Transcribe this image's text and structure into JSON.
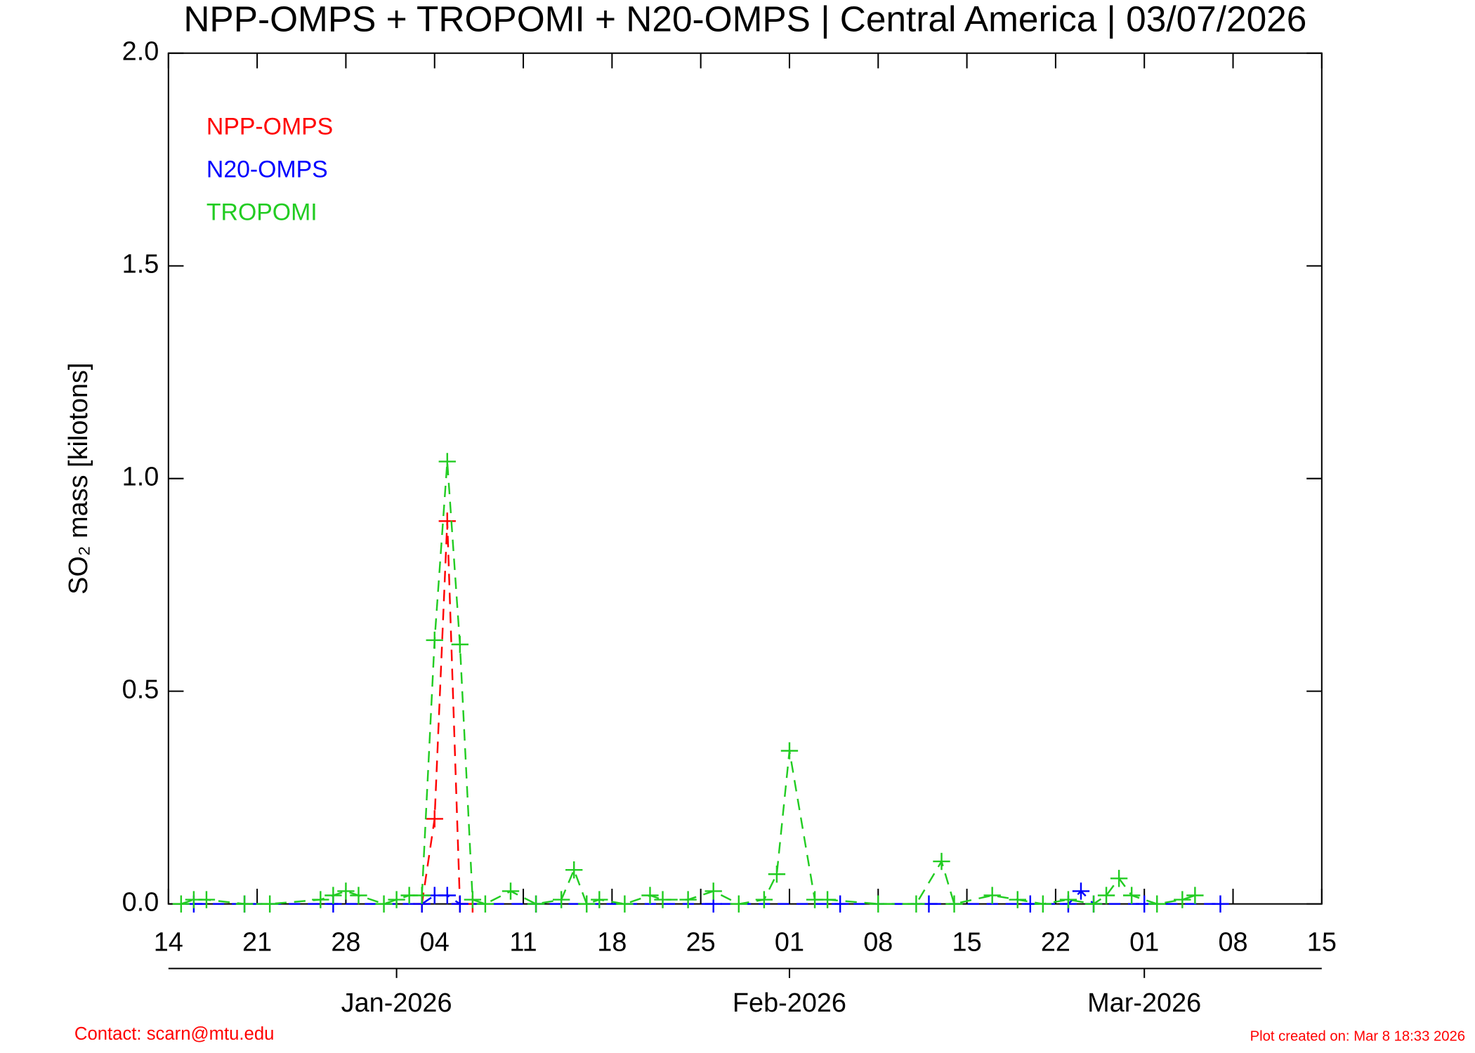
{
  "chart_data": {
    "type": "line",
    "title": "NPP-OMPS + TROPOMI + N20-OMPS | Central America | 03/07/2026",
    "ylabel": "SO₂ mass [kilotons]",
    "xlim": [
      "2025-12-14",
      "2026-03-15"
    ],
    "xticks": [
      {
        "value": "2025-12-14",
        "label": "14"
      },
      {
        "value": "2025-12-21",
        "label": "21"
      },
      {
        "value": "2025-12-28",
        "label": "28"
      },
      {
        "value": "2026-01-04",
        "label": "04"
      },
      {
        "value": "2026-01-11",
        "label": "11"
      },
      {
        "value": "2026-01-18",
        "label": "18"
      },
      {
        "value": "2026-01-25",
        "label": "25"
      },
      {
        "value": "2026-02-01",
        "label": "01"
      },
      {
        "value": "2026-02-08",
        "label": "08"
      },
      {
        "value": "2026-02-15",
        "label": "15"
      },
      {
        "value": "2026-02-22",
        "label": "22"
      },
      {
        "value": "2026-03-01",
        "label": "01"
      },
      {
        "value": "2026-03-08",
        "label": "08"
      },
      {
        "value": "2026-03-15",
        "label": "15"
      }
    ],
    "month_ticks": [
      {
        "value": "2026-01-01",
        "label": "Jan-2026"
      },
      {
        "value": "2026-02-01",
        "label": "Feb-2026"
      },
      {
        "value": "2026-03-01",
        "label": "Mar-2026"
      }
    ],
    "ylim": [
      0,
      2.0
    ],
    "yticks": [
      {
        "value": 0,
        "label": "0.0"
      },
      {
        "value": 0.5,
        "label": "0.5"
      },
      {
        "value": 1.0,
        "label": "1.0"
      },
      {
        "value": 1.5,
        "label": "1.5"
      },
      {
        "value": 2.0,
        "label": "2.0"
      }
    ],
    "series": [
      {
        "name": "NPP-OMPS",
        "color": "#ff0000",
        "x": [
          "2026-01-03",
          "2026-01-04",
          "2026-01-05",
          "2026-01-06",
          "2026-01-07"
        ],
        "values": [
          0.0,
          0.2,
          0.9,
          0.0,
          0.0
        ]
      },
      {
        "name": "N20-OMPS",
        "color": "#0000ff",
        "x": [
          "2025-12-16",
          "2025-12-20",
          "2025-12-27",
          "2026-01-03",
          "2026-01-04",
          "2026-01-05",
          "2026-01-06",
          "2026-01-12",
          "2026-01-26",
          "2026-02-05",
          "2026-02-12",
          "2026-02-20",
          "2026-02-23",
          "2026-02-24",
          "2026-02-25",
          "2026-03-01",
          "2026-03-07"
        ],
        "values": [
          0,
          0,
          0,
          0,
          0.02,
          0.02,
          0,
          0,
          0,
          0,
          0,
          0,
          0,
          0.03,
          0,
          0,
          0
        ]
      },
      {
        "name": "TROPOMI",
        "color": "#22cc22",
        "x": [
          "2025-12-15",
          "2025-12-16",
          "2025-12-17",
          "2025-12-20",
          "2025-12-22",
          "2025-12-26",
          "2025-12-27",
          "2025-12-28",
          "2025-12-29",
          "2025-12-31",
          "2026-01-01",
          "2026-01-02",
          "2026-01-03",
          "2026-01-04",
          "2026-01-05",
          "2026-01-06",
          "2026-01-07",
          "2026-01-08",
          "2026-01-10",
          "2026-01-12",
          "2026-01-14",
          "2026-01-15",
          "2026-01-16",
          "2026-01-17",
          "2026-01-19",
          "2026-01-21",
          "2026-01-22",
          "2026-01-24",
          "2026-01-26",
          "2026-01-28",
          "2026-01-30",
          "2026-01-31",
          "2026-02-01",
          "2026-02-03",
          "2026-02-04",
          "2026-02-08",
          "2026-02-11",
          "2026-02-13",
          "2026-02-14",
          "2026-02-17",
          "2026-02-19",
          "2026-02-21",
          "2026-02-23",
          "2026-02-25",
          "2026-02-26",
          "2026-02-27",
          "2026-02-28",
          "2026-03-02",
          "2026-03-04",
          "2026-03-05"
        ],
        "values": [
          0.0,
          0.01,
          0.01,
          0.0,
          0.0,
          0.01,
          0.02,
          0.03,
          0.02,
          0.0,
          0.01,
          0.02,
          0.02,
          0.62,
          1.04,
          0.61,
          0.01,
          0.0,
          0.03,
          0.0,
          0.01,
          0.08,
          0.0,
          0.01,
          0.0,
          0.02,
          0.01,
          0.01,
          0.03,
          0.0,
          0.01,
          0.07,
          0.36,
          0.01,
          0.01,
          0.0,
          0.0,
          0.1,
          0.0,
          0.02,
          0.01,
          0.0,
          0.01,
          0.0,
          0.02,
          0.06,
          0.02,
          0.0,
          0.01,
          0.02
        ]
      }
    ],
    "contact": "Contact: scarn@mtu.edu",
    "created": "Plot created on: Mar  8 18:33 2026"
  }
}
